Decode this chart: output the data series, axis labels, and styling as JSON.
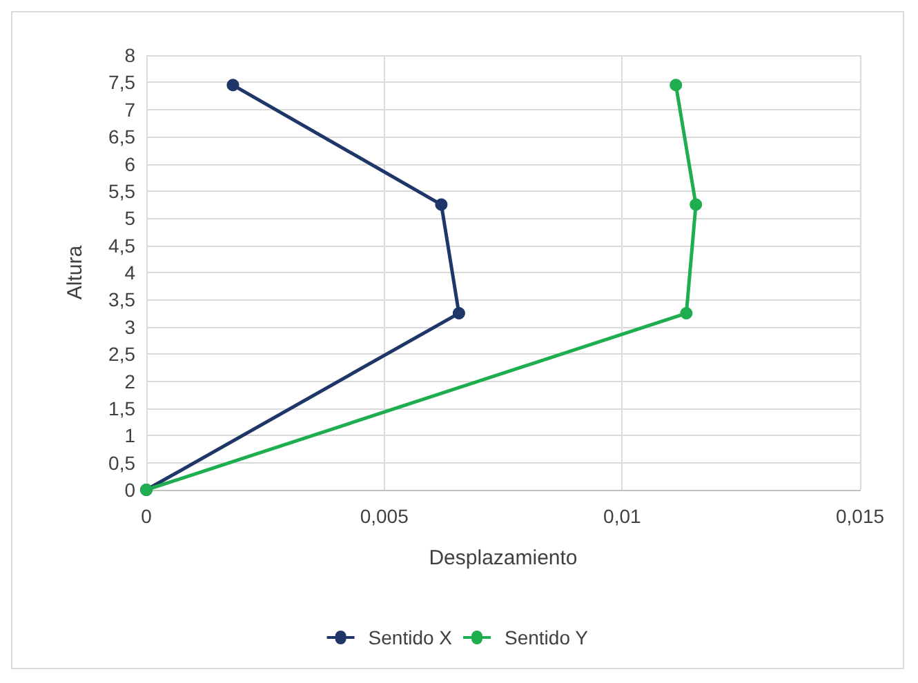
{
  "chart_data": {
    "type": "line",
    "xlabel": "Desplazamiento",
    "ylabel": "Altura",
    "series": [
      {
        "name": "Sentido X",
        "color": "#1f3668",
        "x": [
          0,
          0.00657,
          0.0062,
          0.00182
        ],
        "values": [
          0,
          3.25,
          5.25,
          7.45
        ]
      },
      {
        "name": "Sentido Y",
        "color": "#1fae4f",
        "x": [
          0,
          0.01135,
          0.01155,
          0.01113
        ],
        "values": [
          0,
          3.25,
          5.25,
          7.45
        ]
      }
    ],
    "xlim": [
      0,
      0.015
    ],
    "xticks": [
      0,
      {
        "value": 0.005,
        "label": "0,005"
      },
      {
        "value": 0.01,
        "label": "0,01"
      },
      {
        "value": 0.015,
        "label": "0,015"
      }
    ],
    "ylim": [
      0,
      8
    ],
    "yticks": [
      0,
      {
        "value": 0.5,
        "label": "0,5"
      },
      1,
      {
        "value": 1.5,
        "label": "1,5"
      },
      2,
      {
        "value": 2.5,
        "label": "2,5"
      },
      3,
      {
        "value": 3.5,
        "label": "3,5"
      },
      4,
      {
        "value": 4.5,
        "label": "4,5"
      },
      5,
      {
        "value": 5.5,
        "label": "5,5"
      },
      6,
      {
        "value": 6.5,
        "label": "6,5"
      },
      7,
      {
        "value": 7.5,
        "label": "7,5"
      },
      8
    ],
    "grid": true,
    "legend": "bottom",
    "marker": "circle",
    "line_style": "solid"
  }
}
